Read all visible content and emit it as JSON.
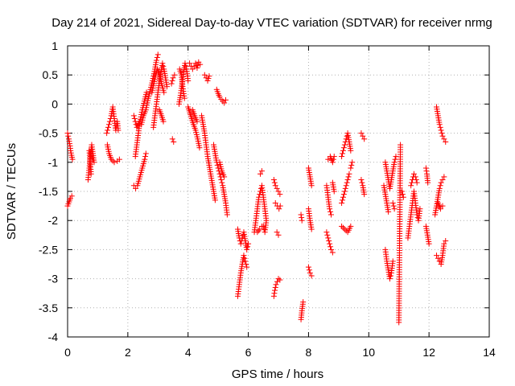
{
  "chart_data": {
    "type": "scatter",
    "title": "Day 214 of 2021, Sidereal Day-to-day VTEC variation (SDTVAR) for receiver nrmg",
    "xlabel": "GPS time / hours",
    "ylabel": "SDTVAR / TECUs",
    "xlim": [
      0,
      14
    ],
    "ylim": [
      -4,
      1
    ],
    "xticks": [
      0,
      2,
      4,
      6,
      8,
      10,
      12,
      14
    ],
    "xtick_labels": [
      "0",
      "2",
      "4",
      "6",
      "8",
      "10",
      "12",
      "14"
    ],
    "yticks": [
      1,
      0.5,
      0,
      -0.5,
      -1,
      -1.5,
      -2,
      -2.5,
      -3,
      -3.5,
      -4
    ],
    "ytick_labels": [
      "1",
      "0.5",
      "0",
      "-0.5",
      "-1",
      "-1.5",
      "-2",
      "-2.5",
      "-3",
      "-3.5",
      "-4"
    ],
    "grid": true,
    "marker": "+",
    "color": "#ff0000",
    "segments": [
      [
        [
          0.0,
          -0.5
        ],
        [
          0.04,
          -0.6
        ],
        [
          0.08,
          -0.72
        ],
        [
          0.1,
          -0.8
        ],
        [
          0.13,
          -0.88
        ],
        [
          0.16,
          -0.95
        ]
      ],
      [
        [
          0.0,
          -1.75
        ],
        [
          0.05,
          -1.68
        ],
        [
          0.09,
          -1.62
        ],
        [
          0.14,
          -1.58
        ]
      ],
      [
        [
          0.68,
          -1.3
        ],
        [
          0.72,
          -1.1
        ],
        [
          0.76,
          -0.9
        ],
        [
          0.8,
          -0.7
        ],
        [
          0.84,
          -0.85
        ],
        [
          0.88,
          -1.0
        ],
        [
          0.72,
          -0.8
        ],
        [
          0.78,
          -1.2
        ]
      ],
      [
        [
          1.3,
          -0.5
        ],
        [
          1.35,
          -0.4
        ],
        [
          1.4,
          -0.3
        ],
        [
          1.45,
          -0.2
        ],
        [
          1.5,
          -0.05
        ],
        [
          1.55,
          -0.25
        ],
        [
          1.6,
          -0.45
        ],
        [
          1.65,
          -0.3
        ],
        [
          1.68,
          -0.45
        ]
      ],
      [
        [
          1.32,
          -0.7
        ],
        [
          1.38,
          -0.85
        ],
        [
          1.45,
          -0.95
        ],
        [
          1.55,
          -1.0
        ],
        [
          1.65,
          -0.98
        ],
        [
          1.72,
          -0.95
        ]
      ],
      [
        [
          2.2,
          -0.2
        ],
        [
          2.25,
          -0.3
        ],
        [
          2.3,
          -0.4
        ],
        [
          2.38,
          -0.3
        ],
        [
          2.45,
          -0.35
        ],
        [
          2.52,
          -0.2
        ],
        [
          2.6,
          -0.1
        ],
        [
          2.68,
          0.1
        ],
        [
          2.75,
          0.25
        ],
        [
          2.82,
          0.4
        ],
        [
          2.9,
          0.6
        ],
        [
          2.95,
          0.75
        ],
        [
          3.0,
          0.85
        ]
      ],
      [
        [
          2.2,
          -1.4
        ],
        [
          2.26,
          -1.45
        ],
        [
          2.32,
          -1.4
        ],
        [
          2.4,
          -1.25
        ],
        [
          2.48,
          -1.1
        ],
        [
          2.56,
          -0.95
        ],
        [
          2.6,
          -0.85
        ]
      ],
      [
        [
          2.25,
          -0.9
        ],
        [
          2.3,
          -0.7
        ],
        [
          2.35,
          -0.5
        ],
        [
          2.4,
          -0.3
        ],
        [
          2.48,
          -0.1
        ],
        [
          2.55,
          0.05
        ],
        [
          2.62,
          0.2
        ]
      ],
      [
        [
          2.85,
          -0.4
        ],
        [
          2.9,
          -0.2
        ],
        [
          2.95,
          0.0
        ],
        [
          3.0,
          0.2
        ],
        [
          3.05,
          0.4
        ],
        [
          3.1,
          0.55
        ],
        [
          3.15,
          0.7
        ],
        [
          3.2,
          0.6
        ],
        [
          3.25,
          0.45
        ],
        [
          3.3,
          0.3
        ]
      ],
      [
        [
          2.8,
          0.2
        ],
        [
          2.86,
          0.35
        ],
        [
          2.92,
          0.5
        ],
        [
          2.98,
          0.6
        ],
        [
          3.05,
          0.5
        ],
        [
          3.12,
          0.35
        ],
        [
          3.2,
          0.2
        ]
      ],
      [
        [
          3.05,
          -0.1
        ],
        [
          3.12,
          -0.2
        ],
        [
          3.18,
          -0.3
        ]
      ],
      [
        [
          3.45,
          0.35
        ],
        [
          3.5,
          0.45
        ],
        [
          3.55,
          0.5
        ]
      ],
      [
        [
          3.48,
          -0.6
        ],
        [
          3.52,
          -0.65
        ]
      ],
      [
        [
          3.7,
          0.0
        ],
        [
          3.75,
          0.15
        ],
        [
          3.8,
          0.35
        ],
        [
          3.85,
          0.55
        ],
        [
          3.9,
          0.7
        ],
        [
          3.95,
          0.6
        ],
        [
          4.0,
          0.4
        ]
      ],
      [
        [
          3.72,
          0.6
        ],
        [
          3.78,
          0.5
        ],
        [
          3.82,
          0.3
        ],
        [
          3.88,
          0.1
        ]
      ],
      [
        [
          4.05,
          0.7
        ],
        [
          4.1,
          0.65
        ],
        [
          4.15,
          0.6
        ],
        [
          4.2,
          0.65
        ],
        [
          4.25,
          0.7
        ],
        [
          4.3,
          0.62
        ],
        [
          4.35,
          0.72
        ],
        [
          4.4,
          0.68
        ]
      ],
      [
        [
          4.0,
          -0.05
        ],
        [
          4.06,
          -0.15
        ],
        [
          4.12,
          -0.25
        ],
        [
          4.18,
          -0.35
        ],
        [
          4.25,
          -0.45
        ],
        [
          4.32,
          -0.6
        ],
        [
          4.38,
          -0.75
        ]
      ],
      [
        [
          4.15,
          -0.1
        ],
        [
          4.22,
          -0.2
        ],
        [
          4.3,
          -0.3
        ]
      ],
      [
        [
          4.55,
          0.5
        ],
        [
          4.6,
          0.45
        ],
        [
          4.65,
          0.4
        ],
        [
          4.7,
          0.48
        ]
      ],
      [
        [
          4.45,
          -0.2
        ],
        [
          4.5,
          -0.35
        ],
        [
          4.55,
          -0.5
        ],
        [
          4.6,
          -0.7
        ],
        [
          4.65,
          -0.9
        ],
        [
          4.7,
          -1.05
        ],
        [
          4.75,
          -1.2
        ],
        [
          4.8,
          -1.35
        ],
        [
          4.85,
          -1.5
        ],
        [
          4.9,
          -1.65
        ]
      ],
      [
        [
          4.95,
          0.25
        ],
        [
          5.0,
          0.18
        ],
        [
          5.05,
          0.12
        ],
        [
          5.1,
          0.08
        ],
        [
          5.15,
          0.05
        ],
        [
          5.2,
          0.02
        ],
        [
          5.25,
          0.07
        ]
      ],
      [
        [
          4.85,
          -0.7
        ],
        [
          4.9,
          -0.85
        ],
        [
          4.95,
          -1.0
        ],
        [
          5.0,
          -1.1
        ],
        [
          5.05,
          -1.2
        ],
        [
          5.1,
          -1.3
        ],
        [
          5.15,
          -1.4
        ],
        [
          5.2,
          -1.55
        ],
        [
          5.25,
          -1.7
        ],
        [
          5.3,
          -1.9
        ]
      ],
      [
        [
          5.05,
          -1.0
        ],
        [
          5.12,
          -1.15
        ],
        [
          5.2,
          -1.25
        ]
      ],
      [
        [
          5.65,
          -2.15
        ],
        [
          5.7,
          -2.3
        ],
        [
          5.75,
          -2.4
        ],
        [
          5.8,
          -2.3
        ],
        [
          5.85,
          -2.2
        ],
        [
          5.9,
          -2.35
        ],
        [
          5.95,
          -2.5
        ],
        [
          6.0,
          -2.4
        ]
      ],
      [
        [
          5.65,
          -3.3
        ],
        [
          5.7,
          -3.1
        ],
        [
          5.75,
          -2.9
        ],
        [
          5.8,
          -2.75
        ],
        [
          5.85,
          -2.6
        ],
        [
          5.9,
          -2.7
        ],
        [
          5.95,
          -2.8
        ]
      ],
      [
        [
          6.2,
          -2.2
        ],
        [
          6.25,
          -2.0
        ],
        [
          6.3,
          -1.8
        ],
        [
          6.35,
          -1.6
        ],
        [
          6.4,
          -1.5
        ],
        [
          6.45,
          -1.4
        ],
        [
          6.5,
          -1.6
        ],
        [
          6.55,
          -1.8
        ],
        [
          6.6,
          -2.0
        ],
        [
          6.55,
          -2.2
        ],
        [
          6.5,
          -2.1
        ]
      ],
      [
        [
          6.3,
          -2.2
        ],
        [
          6.38,
          -2.15
        ],
        [
          6.45,
          -2.1
        ]
      ],
      [
        [
          6.4,
          -1.2
        ],
        [
          6.45,
          -1.15
        ]
      ],
      [
        [
          6.85,
          -3.3
        ],
        [
          6.88,
          -3.2
        ],
        [
          6.92,
          -3.1
        ],
        [
          6.96,
          -3.05
        ],
        [
          7.0,
          -3.0
        ],
        [
          7.05,
          -3.02
        ]
      ],
      [
        [
          6.85,
          -1.3
        ],
        [
          6.9,
          -1.4
        ],
        [
          6.95,
          -1.45
        ],
        [
          7.0,
          -1.5
        ],
        [
          7.05,
          -1.55
        ]
      ],
      [
        [
          6.9,
          -1.7
        ],
        [
          6.96,
          -1.75
        ],
        [
          7.02,
          -1.8
        ],
        [
          7.06,
          -1.75
        ]
      ],
      [
        [
          6.95,
          -2.2
        ],
        [
          7.0,
          -2.25
        ]
      ],
      [
        [
          7.75,
          -3.7
        ],
        [
          7.78,
          -3.55
        ],
        [
          7.82,
          -3.4
        ]
      ],
      [
        [
          7.75,
          -1.9
        ],
        [
          7.78,
          -2.0
        ]
      ],
      [
        [
          8.0,
          -1.1
        ],
        [
          8.05,
          -1.25
        ],
        [
          8.1,
          -1.4
        ]
      ],
      [
        [
          8.0,
          -1.8
        ],
        [
          8.05,
          -2.0
        ],
        [
          8.1,
          -2.15
        ]
      ],
      [
        [
          8.0,
          -2.8
        ],
        [
          8.05,
          -2.9
        ],
        [
          8.1,
          -2.95
        ]
      ],
      [
        [
          8.6,
          -1.4
        ],
        [
          8.65,
          -1.6
        ],
        [
          8.7,
          -1.8
        ],
        [
          8.75,
          -1.9
        ]
      ],
      [
        [
          8.6,
          -2.2
        ],
        [
          8.65,
          -2.3
        ],
        [
          8.7,
          -2.4
        ],
        [
          8.75,
          -2.5
        ],
        [
          8.8,
          -2.55
        ]
      ],
      [
        [
          8.65,
          -0.95
        ],
        [
          8.72,
          -0.9
        ],
        [
          8.8,
          -1.0
        ],
        [
          8.85,
          -0.9
        ]
      ],
      [
        [
          8.8,
          -1.35
        ],
        [
          8.85,
          -1.5
        ]
      ],
      [
        [
          9.1,
          -0.9
        ],
        [
          9.15,
          -0.8
        ],
        [
          9.2,
          -0.7
        ],
        [
          9.25,
          -0.6
        ],
        [
          9.3,
          -0.5
        ],
        [
          9.35,
          -0.65
        ],
        [
          9.4,
          -0.8
        ]
      ],
      [
        [
          9.1,
          -1.7
        ],
        [
          9.15,
          -1.6
        ],
        [
          9.2,
          -1.5
        ],
        [
          9.25,
          -1.4
        ],
        [
          9.3,
          -1.3
        ],
        [
          9.35,
          -1.2
        ]
      ],
      [
        [
          9.1,
          -2.1
        ],
        [
          9.2,
          -2.15
        ],
        [
          9.3,
          -2.2
        ],
        [
          9.4,
          -2.1
        ]
      ],
      [
        [
          9.4,
          -1.1
        ],
        [
          9.45,
          -1.0
        ]
      ],
      [
        [
          9.75,
          -0.5
        ],
        [
          9.8,
          -0.55
        ],
        [
          9.85,
          -0.6
        ]
      ],
      [
        [
          9.75,
          -1.3
        ],
        [
          9.8,
          -1.4
        ],
        [
          9.85,
          -1.55
        ]
      ],
      [
        [
          10.5,
          -1.4
        ],
        [
          10.55,
          -1.55
        ],
        [
          10.6,
          -1.7
        ],
        [
          10.65,
          -1.85
        ]
      ],
      [
        [
          10.55,
          -1.0
        ],
        [
          10.6,
          -1.15
        ],
        [
          10.65,
          -1.3
        ],
        [
          10.7,
          -1.45
        ],
        [
          10.75,
          -1.3
        ],
        [
          10.8,
          -1.15
        ],
        [
          10.85,
          -1.0
        ],
        [
          10.9,
          -0.9
        ]
      ],
      [
        [
          10.55,
          -2.5
        ],
        [
          10.6,
          -2.7
        ],
        [
          10.65,
          -2.85
        ],
        [
          10.7,
          -3.0
        ],
        [
          10.75,
          -2.9
        ],
        [
          10.8,
          -2.7
        ]
      ],
      [
        [
          10.8,
          -1.7
        ],
        [
          10.85,
          -1.8
        ]
      ],
      [
        [
          11.05,
          -0.7
        ],
        [
          11.0,
          -3.75
        ]
      ],
      [
        [
          11.1,
          -1.5
        ],
        [
          11.15,
          -1.6
        ]
      ],
      [
        [
          11.3,
          -2.3
        ],
        [
          11.35,
          -2.1
        ],
        [
          11.4,
          -1.9
        ],
        [
          11.45,
          -1.7
        ],
        [
          11.5,
          -1.5
        ],
        [
          11.55,
          -1.7
        ],
        [
          11.6,
          -1.9
        ],
        [
          11.65,
          -2.0
        ],
        [
          11.7,
          -1.8
        ]
      ],
      [
        [
          11.4,
          -1.4
        ],
        [
          11.45,
          -1.3
        ],
        [
          11.5,
          -1.2
        ],
        [
          11.55,
          -1.25
        ],
        [
          11.6,
          -1.35
        ]
      ],
      [
        [
          11.9,
          -1.1
        ],
        [
          11.93,
          -1.2
        ],
        [
          11.96,
          -1.35
        ]
      ],
      [
        [
          11.9,
          -2.1
        ],
        [
          11.95,
          -2.25
        ],
        [
          12.0,
          -2.4
        ]
      ],
      [
        [
          12.2,
          -1.9
        ],
        [
          12.25,
          -1.75
        ],
        [
          12.3,
          -1.6
        ],
        [
          12.35,
          -1.45
        ],
        [
          12.4,
          -1.35
        ],
        [
          12.45,
          -1.3
        ],
        [
          12.5,
          -1.25
        ]
      ],
      [
        [
          12.25,
          -0.05
        ],
        [
          12.3,
          -0.2
        ],
        [
          12.35,
          -0.35
        ],
        [
          12.4,
          -0.45
        ],
        [
          12.45,
          -0.55
        ],
        [
          12.5,
          -0.6
        ],
        [
          12.55,
          -0.65
        ]
      ],
      [
        [
          12.25,
          -2.6
        ],
        [
          12.3,
          -2.65
        ],
        [
          12.35,
          -2.7
        ],
        [
          12.4,
          -2.75
        ],
        [
          12.45,
          -2.6
        ],
        [
          12.5,
          -2.4
        ],
        [
          12.55,
          -2.35
        ]
      ],
      [
        [
          12.3,
          -1.7
        ],
        [
          12.38,
          -1.8
        ],
        [
          12.45,
          -1.75
        ]
      ]
    ]
  }
}
